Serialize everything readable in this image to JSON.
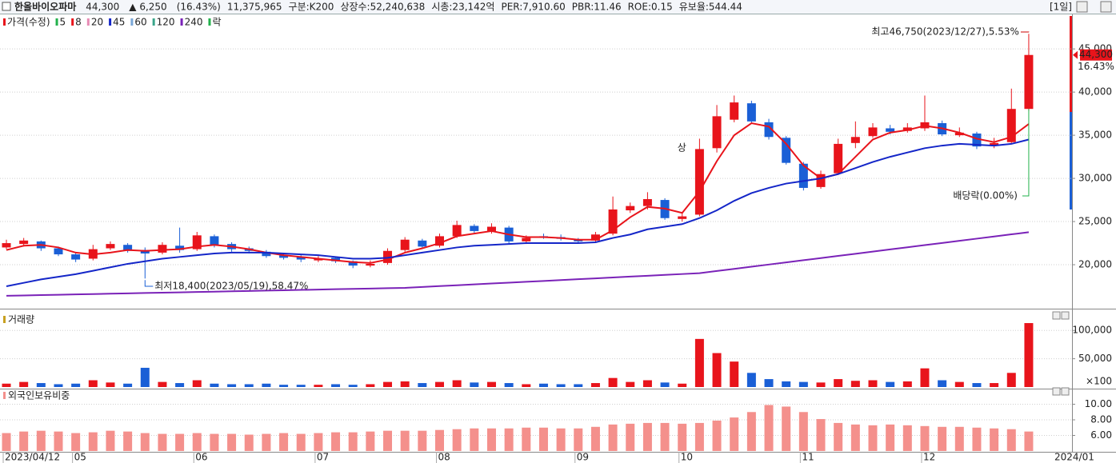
{
  "header": {
    "items": [
      {
        "text": "한올바이오파마",
        "color": "#000000"
      },
      {
        "text": "44,300",
        "color": "#e8141b"
      },
      {
        "text": "▲ 6,250",
        "color": "#e8141b"
      },
      {
        "text": "(16.43%)",
        "color": "#e8141b"
      },
      {
        "text": "11,375,965",
        "color": "#000000"
      },
      {
        "text": "구분:K200",
        "color": "#000000"
      },
      {
        "text": "상장수:52,240,638",
        "color": "#000000"
      },
      {
        "text": "시총:23,142억",
        "color": "#000000"
      },
      {
        "text": "PER:7,910.60",
        "color": "#000000"
      },
      {
        "text": "PBR:11.46",
        "color": "#000000"
      },
      {
        "text": "ROE:0.15",
        "color": "#000000"
      },
      {
        "text": "유보율:544.44",
        "color": "#000000"
      }
    ],
    "period": "[1일]"
  },
  "chart_data": [
    {
      "type": "candlestick",
      "legend_title": "가격(수정)",
      "legend_tail": "락",
      "categories": [
        "2023/04/12",
        null,
        null,
        null,
        "05",
        null,
        null,
        null,
        null,
        null,
        null,
        "06",
        null,
        null,
        null,
        null,
        null,
        null,
        "07",
        null,
        null,
        null,
        null,
        null,
        null,
        "08",
        null,
        null,
        null,
        null,
        null,
        null,
        null,
        "09",
        null,
        null,
        null,
        null,
        null,
        "10",
        null,
        null,
        null,
        null,
        null,
        null,
        "11",
        null,
        null,
        null,
        null,
        null,
        null,
        "12",
        null,
        null,
        null,
        null,
        null,
        null
      ],
      "x_end_label": "2024/01",
      "open": [
        22000,
        22400,
        22700,
        21900,
        21200,
        20700,
        21900,
        22300,
        21700,
        21400,
        22200,
        21800,
        23300,
        22400,
        21900,
        21500,
        21100,
        20900,
        20500,
        20800,
        20400,
        19900,
        20200,
        21700,
        22800,
        22200,
        23300,
        24500,
        23900,
        24300,
        22700,
        23300,
        23200,
        22900,
        22800,
        23600,
        26300,
        26800,
        27500,
        25300,
        25800,
        33500,
        36800,
        38700,
        36500,
        34700,
        31700,
        29000,
        30600,
        34100,
        34900,
        35800,
        35500,
        35800,
        36400,
        35000,
        35200,
        33800,
        34200,
        38050
      ],
      "high": [
        22900,
        23100,
        22800,
        22100,
        21400,
        22300,
        22700,
        22500,
        22000,
        22600,
        24300,
        23800,
        23500,
        22600,
        22100,
        21700,
        21300,
        21100,
        21000,
        20900,
        20500,
        20500,
        21900,
        23200,
        23000,
        23600,
        25100,
        24700,
        24800,
        24500,
        23400,
        23600,
        23500,
        23100,
        23800,
        27900,
        27200,
        28400,
        27700,
        26000,
        34600,
        38500,
        39600,
        39000,
        36900,
        34900,
        31900,
        30900,
        34600,
        36600,
        36400,
        36200,
        36400,
        39600,
        36700,
        35900,
        35400,
        34700,
        40400,
        46750
      ],
      "low": [
        21800,
        22100,
        21600,
        21000,
        20300,
        20500,
        21700,
        21400,
        18400,
        21200,
        21400,
        21600,
        22000,
        21500,
        21300,
        20800,
        20600,
        20300,
        20300,
        20200,
        19600,
        19700,
        20000,
        21500,
        21900,
        22000,
        23100,
        23700,
        23600,
        22400,
        22400,
        23000,
        22800,
        22500,
        22600,
        23400,
        26000,
        26400,
        25200,
        25000,
        25600,
        33000,
        36500,
        36400,
        34500,
        31600,
        28600,
        28800,
        30400,
        33500,
        34700,
        35100,
        35300,
        35500,
        34900,
        34800,
        33400,
        33500,
        34100,
        37800
      ],
      "close": [
        22500,
        22800,
        21900,
        21200,
        20600,
        21800,
        22400,
        21600,
        21300,
        22300,
        21700,
        23400,
        22300,
        21800,
        21600,
        21000,
        20800,
        20600,
        20700,
        20400,
        19900,
        20100,
        21600,
        22900,
        22100,
        23300,
        24600,
        23900,
        24400,
        22700,
        23100,
        23200,
        23000,
        22700,
        23500,
        26400,
        26800,
        27600,
        25400,
        25600,
        33400,
        37200,
        38800,
        36600,
        34800,
        31800,
        28900,
        30500,
        34000,
        34800,
        35900,
        35400,
        35900,
        36500,
        35100,
        35300,
        33700,
        34100,
        38050,
        44300
      ],
      "up_color": "#e8141b",
      "down_color": "#1a5fd6",
      "series": [
        {
          "name": "5",
          "color": "#22b14c"
        },
        {
          "name": "8",
          "color": "#e8141b",
          "values": [
            21700,
            22200,
            22300,
            22000,
            21400,
            21200,
            21400,
            21700,
            21600,
            21700,
            21800,
            22100,
            22300,
            22100,
            21800,
            21400,
            21100,
            20900,
            20700,
            20500,
            20300,
            20200,
            20600,
            21400,
            21900,
            22500,
            23300,
            23600,
            23900,
            23500,
            23200,
            23200,
            23100,
            22900,
            22900,
            24000,
            25500,
            26700,
            26500,
            26000,
            28500,
            32000,
            35000,
            36400,
            36000,
            34000,
            31500,
            30000,
            30500,
            32500,
            34500,
            35300,
            35600,
            36100,
            35800,
            35300,
            34600,
            34200,
            34800,
            36300
          ]
        },
        {
          "name": "20",
          "color": "#e88bb5"
        },
        {
          "name": "45",
          "color": "#1426c8",
          "values": [
            17500,
            17900,
            18300,
            18600,
            18900,
            19300,
            19700,
            20100,
            20400,
            20700,
            20900,
            21100,
            21300,
            21400,
            21400,
            21400,
            21300,
            21200,
            21100,
            20900,
            20700,
            20700,
            20800,
            21100,
            21400,
            21700,
            22000,
            22200,
            22300,
            22400,
            22500,
            22500,
            22500,
            22500,
            22600,
            23100,
            23500,
            24100,
            24400,
            24700,
            25400,
            26300,
            27400,
            28300,
            28900,
            29400,
            29700,
            30000,
            30500,
            31200,
            31900,
            32500,
            33000,
            33500,
            33800,
            34000,
            33900,
            33800,
            34000,
            34500
          ]
        },
        {
          "name": "60",
          "color": "#7aa7d8"
        },
        {
          "name": "120",
          "color": "#3aa58a"
        },
        {
          "name": "240",
          "color": "#7a22b8",
          "values": [
            16400,
            16440,
            16480,
            16520,
            16560,
            16600,
            16640,
            16680,
            16720,
            16760,
            16800,
            16840,
            16880,
            16920,
            16960,
            17000,
            17040,
            17080,
            17120,
            17160,
            17200,
            17240,
            17280,
            17320,
            17420,
            17520,
            17620,
            17720,
            17820,
            17920,
            18020,
            18120,
            18220,
            18320,
            18420,
            18520,
            18620,
            18720,
            18820,
            18920,
            19020,
            19270,
            19520,
            19770,
            20020,
            20270,
            20520,
            20770,
            21020,
            21270,
            21520,
            21770,
            22020,
            22270,
            22520,
            22770,
            23020,
            23270,
            23520,
            23770
          ]
        }
      ],
      "ylim": [
        15000,
        49000
      ],
      "yticks": [
        {
          "value": 20000,
          "label": "20,000"
        },
        {
          "value": 25000,
          "label": "25,000"
        },
        {
          "value": 30000,
          "label": "30,000"
        },
        {
          "value": 35000,
          "label": "35,000"
        },
        {
          "value": 40000,
          "label": "40,000"
        },
        {
          "value": 45000,
          "label": "45,000"
        }
      ],
      "grid": true,
      "last_price_label": "44,300",
      "last_change_label": "16.43%",
      "annotations": {
        "high": "최고46,750(2023/12/27),5.53%",
        "low": "최저18,400(2023/05/19),58.47%",
        "ex_dividend": "배당락(0.00%)",
        "mark": "상"
      }
    },
    {
      "type": "bar",
      "title": "거래량",
      "unit_label": "×100",
      "values": [
        6000,
        9000,
        7000,
        5000,
        6000,
        12000,
        8000,
        6000,
        34000,
        9000,
        7000,
        12000,
        6000,
        5000,
        5000,
        6000,
        4000,
        4000,
        4000,
        5000,
        4000,
        5000,
        9000,
        10000,
        7000,
        9000,
        12000,
        8000,
        9000,
        7000,
        5000,
        6000,
        5000,
        5000,
        7000,
        16000,
        9000,
        12000,
        8000,
        6000,
        85000,
        60000,
        45000,
        25000,
        14000,
        10000,
        9000,
        8000,
        14000,
        11000,
        12000,
        9000,
        10000,
        33000,
        12000,
        9000,
        7000,
        7000,
        25000,
        113000
      ],
      "ylim": [
        0,
        130000
      ],
      "yticks": [
        {
          "value": 50000,
          "label": "50,000"
        },
        {
          "value": 100000,
          "label": "100,000"
        }
      ],
      "grid": true
    },
    {
      "type": "bar",
      "title": "외국인보유비중",
      "color": "#f4908c",
      "values": [
        6.3,
        6.5,
        6.6,
        6.5,
        6.3,
        6.4,
        6.6,
        6.5,
        6.3,
        6.2,
        6.2,
        6.3,
        6.2,
        6.2,
        6.1,
        6.2,
        6.3,
        6.2,
        6.3,
        6.4,
        6.4,
        6.5,
        6.6,
        6.6,
        6.6,
        6.7,
        6.8,
        6.9,
        6.9,
        6.9,
        7.0,
        7.0,
        6.9,
        6.9,
        7.1,
        7.4,
        7.5,
        7.6,
        7.6,
        7.5,
        7.6,
        7.9,
        8.3,
        9.0,
        9.9,
        9.7,
        9.0,
        8.1,
        7.6,
        7.4,
        7.3,
        7.4,
        7.3,
        7.2,
        7.1,
        7.1,
        7.0,
        6.9,
        6.8,
        6.5
      ],
      "ylim": [
        4,
        11.9
      ],
      "yticks": [
        {
          "value": 6,
          "label": "6.00"
        },
        {
          "value": 8,
          "label": "8.00"
        },
        {
          "value": 10,
          "label": "10.00"
        }
      ],
      "grid": true
    }
  ]
}
